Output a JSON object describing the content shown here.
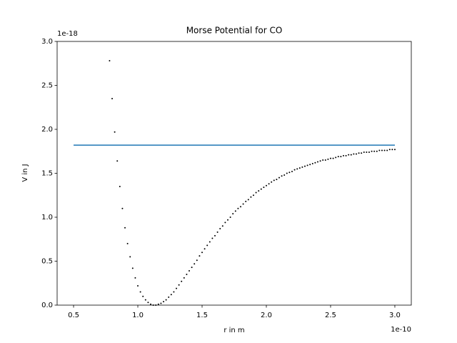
{
  "chart_data": {
    "type": "scatter",
    "title": "Morse Potential for CO",
    "x_label": "r in m",
    "y_label": "V in J",
    "x_offset_label": "1e-10",
    "y_offset_label": "1e-18",
    "xlim": [
      0.372,
      3.128
    ],
    "ylim": [
      0,
      3
    ],
    "xticks": [
      0.5,
      {
        "value": 1,
        "label": "1.0"
      },
      1.5,
      {
        "value": 2,
        "label": "2.0"
      },
      2.5,
      {
        "value": 3,
        "label": "3.0"
      }
    ],
    "yticks": [
      {
        "value": 0,
        "label": "0.0"
      },
      0.5,
      {
        "value": 1,
        "label": "1.0"
      },
      1.5,
      {
        "value": 2,
        "label": "2.0"
      },
      2.5,
      {
        "value": 3,
        "label": "3.0"
      }
    ],
    "series": [
      {
        "type": "scatter",
        "color": "#000000",
        "x": [
          0.78,
          0.8,
          0.82,
          0.84,
          0.86,
          0.88,
          0.9,
          0.92,
          0.94,
          0.96,
          0.98,
          1,
          1.02,
          1.04,
          1.06,
          1.08,
          1.1,
          1.12,
          1.14,
          1.16,
          1.18,
          1.2,
          1.22,
          1.24,
          1.26,
          1.28,
          1.3,
          1.32,
          1.34,
          1.36,
          1.38,
          1.4,
          1.42,
          1.44,
          1.46,
          1.48,
          1.5,
          1.52,
          1.54,
          1.56,
          1.58,
          1.6,
          1.62,
          1.64,
          1.66,
          1.68,
          1.7,
          1.72,
          1.74,
          1.76,
          1.78,
          1.8,
          1.82,
          1.84,
          1.86,
          1.88,
          1.9,
          1.92,
          1.94,
          1.96,
          1.98,
          2,
          2.02,
          2.04,
          2.06,
          2.08,
          2.1,
          2.12,
          2.14,
          2.16,
          2.18,
          2.2,
          2.22,
          2.24,
          2.26,
          2.28,
          2.3,
          2.32,
          2.34,
          2.36,
          2.38,
          2.4,
          2.42,
          2.44,
          2.46,
          2.48,
          2.5,
          2.52,
          2.54,
          2.56,
          2.58,
          2.6,
          2.62,
          2.64,
          2.66,
          2.68,
          2.7,
          2.72,
          2.74,
          2.76,
          2.78,
          2.8,
          2.82,
          2.84,
          2.86,
          2.88,
          2.9,
          2.92,
          2.94,
          2.96,
          2.98,
          3
        ],
        "values": [
          2.78,
          2.35,
          1.97,
          1.64,
          1.35,
          1.1,
          0.88,
          0.7,
          0.55,
          0.42,
          0.31,
          0.22,
          0.15,
          0.1,
          0.06,
          0.03,
          0.01,
          0.0,
          0.0,
          0.01,
          0.02,
          0.04,
          0.06,
          0.09,
          0.12,
          0.15,
          0.19,
          0.23,
          0.27,
          0.31,
          0.35,
          0.39,
          0.43,
          0.47,
          0.51,
          0.56,
          0.6,
          0.64,
          0.68,
          0.72,
          0.76,
          0.79,
          0.83,
          0.87,
          0.9,
          0.94,
          0.97,
          1.0,
          1.04,
          1.07,
          1.1,
          1.12,
          1.15,
          1.18,
          1.2,
          1.23,
          1.25,
          1.28,
          1.3,
          1.32,
          1.34,
          1.36,
          1.38,
          1.4,
          1.42,
          1.43,
          1.45,
          1.47,
          1.48,
          1.5,
          1.51,
          1.52,
          1.54,
          1.55,
          1.56,
          1.57,
          1.58,
          1.59,
          1.6,
          1.61,
          1.62,
          1.63,
          1.64,
          1.65,
          1.65,
          1.66,
          1.67,
          1.67,
          1.68,
          1.69,
          1.69,
          1.7,
          1.7,
          1.71,
          1.71,
          1.72,
          1.72,
          1.73,
          1.73,
          1.74,
          1.74,
          1.74,
          1.75,
          1.75,
          1.75,
          1.76,
          1.76,
          1.76,
          1.76,
          1.77,
          1.77,
          1.77
        ]
      },
      {
        "type": "line",
        "color": "#1f77b4",
        "x": [
          0.5,
          3
        ],
        "values": [
          1.82,
          1.82
        ]
      }
    ]
  }
}
